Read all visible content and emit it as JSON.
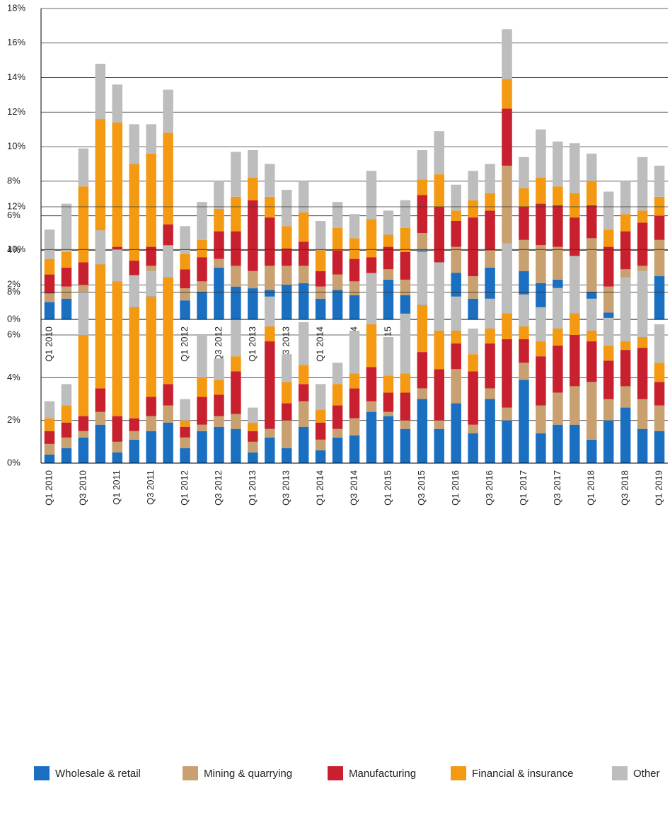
{
  "chart_data": [
    {
      "type": "stacked_bar",
      "categories": [
        "Q1 2010",
        null,
        "Q3 2010",
        null,
        "Q1 2011",
        null,
        "Q3 2011",
        null,
        "Q1 2012",
        null,
        "Q3 2012",
        null,
        "Q1 2013",
        null,
        "Q3 2013",
        null,
        "Q1 2014",
        null,
        "Q3 2014",
        null,
        "Q1 2015",
        null,
        "Q3 2015",
        null,
        "Q1 2016",
        null,
        "Q3 2016",
        null,
        "Q1 2017",
        null,
        "Q3 2017",
        null,
        "Q1 2018",
        null,
        "Q3 2018",
        null,
        "Q1 2019"
      ],
      "ylim": [
        0,
        18
      ],
      "yticks": [
        {
          "value": 0,
          "label": "0%"
        },
        {
          "value": 2,
          "label": "2%"
        },
        {
          "value": 4,
          "label": "4%"
        },
        {
          "value": 6,
          "label": "6%"
        },
        {
          "value": 8,
          "label": "8%"
        },
        {
          "value": 10,
          "label": "10%"
        },
        {
          "value": 12,
          "label": "12%"
        },
        {
          "value": 14,
          "label": "14%"
        },
        {
          "value": 16,
          "label": "16%"
        },
        {
          "value": 18,
          "label": "18%"
        }
      ],
      "grid": true,
      "series": [
        {
          "name": "Wholesale & retail",
          "color": "#1a6fc1",
          "values": [
            1.0,
            1.2,
            1.4,
            1.8,
            2.5,
            1.4,
            2.5,
            2.3,
            1.1,
            1.6,
            3.0,
            1.9,
            1.8,
            1.7,
            2.0,
            2.1,
            1.2,
            1.7,
            1.4,
            1.5,
            2.3,
            1.4,
            4.0,
            1.5,
            2.7,
            1.2,
            3.0,
            2.6,
            2.8,
            2.1,
            2.3,
            1.7,
            1.6,
            0.4,
            1.6,
            1.7,
            2.5
          ]
        },
        {
          "name": "Mining & quarrying",
          "color": "#c9a06f",
          "values": [
            0.5,
            0.7,
            0.6,
            1.0,
            0.5,
            0.7,
            0.6,
            1.6,
            0.7,
            0.6,
            0.5,
            1.2,
            1.0,
            1.4,
            1.1,
            1.0,
            0.7,
            0.9,
            0.8,
            0.6,
            0.6,
            0.9,
            1.0,
            1.8,
            1.5,
            1.3,
            1.0,
            6.3,
            1.8,
            2.2,
            1.9,
            1.9,
            3.1,
            1.5,
            1.3,
            1.4,
            2.1
          ]
        },
        {
          "name": "Manufacturing",
          "color": "#c8202e",
          "values": [
            1.1,
            1.1,
            1.3,
            2.0,
            1.2,
            1.3,
            1.1,
            1.6,
            1.1,
            1.4,
            1.6,
            2.0,
            4.1,
            2.8,
            1.0,
            1.4,
            0.9,
            1.4,
            1.3,
            1.5,
            1.3,
            1.6,
            2.2,
            3.2,
            1.5,
            3.4,
            2.3,
            3.3,
            1.9,
            2.4,
            2.4,
            2.3,
            1.9,
            2.3,
            2.2,
            2.5,
            1.4
          ]
        },
        {
          "name": "Financial & insurance",
          "color": "#f39a12",
          "values": [
            0.9,
            0.9,
            4.4,
            6.8,
            7.2,
            5.6,
            5.4,
            5.3,
            0.9,
            1.0,
            1.3,
            2.0,
            1.3,
            1.2,
            1.3,
            1.7,
            1.2,
            1.3,
            1.2,
            2.2,
            0.7,
            1.4,
            0.9,
            1.9,
            0.6,
            1.0,
            1.0,
            1.7,
            1.1,
            1.5,
            1.1,
            1.4,
            1.4,
            1.0,
            1.0,
            0.7,
            1.1
          ]
        },
        {
          "name": "Other",
          "color": "#bdbdbd",
          "values": [
            1.7,
            2.8,
            2.2,
            3.2,
            2.2,
            2.3,
            1.7,
            2.5,
            1.6,
            2.2,
            1.6,
            2.6,
            1.6,
            1.9,
            2.1,
            1.8,
            1.7,
            1.5,
            1.4,
            2.8,
            1.4,
            1.6,
            1.7,
            2.5,
            1.5,
            1.7,
            1.7,
            2.9,
            1.8,
            2.8,
            2.6,
            2.9,
            1.6,
            2.2,
            1.9,
            3.1,
            1.8
          ]
        }
      ]
    },
    {
      "type": "stacked_bar",
      "categories": [
        "Q1 2010",
        null,
        "Q3 2010",
        null,
        "Q1 2011",
        null,
        "Q3 2011",
        null,
        "Q1 2012",
        null,
        "Q3 2012",
        null,
        "Q1 2013",
        null,
        "Q3 2013",
        null,
        "Q1 2014",
        null,
        "Q3 2014",
        null,
        "Q1 2015",
        null,
        "Q3 2015",
        null,
        "Q1 2016",
        null,
        "Q3 2016",
        null,
        "Q1 2017",
        null,
        "Q3 2017",
        null,
        "Q1 2018",
        null,
        "Q3 2018",
        null,
        "Q1 2019"
      ],
      "ylim": [
        0,
        12
      ],
      "yticks": [
        {
          "value": 0,
          "label": "0%"
        },
        {
          "value": 2,
          "label": "2%"
        },
        {
          "value": 4,
          "label": "4%"
        },
        {
          "value": 6,
          "label": "6%"
        },
        {
          "value": 8,
          "label": "8%"
        },
        {
          "value": 10,
          "label": "10%"
        },
        {
          "value": 12,
          "label": "12%"
        }
      ],
      "grid": true,
      "series": [
        {
          "color": "#1a6fc1",
          "values": [
            0.4,
            0.7,
            1.2,
            1.8,
            0.5,
            1.1,
            1.5,
            1.9,
            0.7,
            1.5,
            1.7,
            1.6,
            0.5,
            1.2,
            0.7,
            1.7,
            0.6,
            1.2,
            1.3,
            2.4,
            2.2,
            1.6,
            3.0,
            1.6,
            2.8,
            1.4,
            3.0,
            2.0,
            3.9,
            1.4,
            1.8,
            1.8,
            1.1,
            2.0,
            2.6,
            1.6,
            1.5
          ]
        },
        {
          "color": "#c9a06f",
          "values": [
            0.5,
            0.5,
            0.3,
            0.6,
            0.5,
            0.4,
            0.7,
            0.8,
            0.5,
            0.3,
            0.5,
            0.7,
            0.5,
            0.4,
            1.3,
            1.2,
            0.5,
            0.4,
            0.8,
            0.5,
            0.2,
            0.4,
            0.5,
            0.4,
            1.6,
            0.4,
            0.5,
            0.6,
            0.8,
            1.3,
            1.5,
            1.8,
            2.7,
            1.0,
            1.0,
            1.4,
            1.2
          ]
        },
        {
          "color": "#c8202e",
          "values": [
            0.6,
            0.7,
            0.7,
            1.1,
            1.2,
            0.6,
            0.9,
            1.0,
            0.5,
            1.3,
            1.0,
            2.0,
            0.5,
            4.1,
            0.8,
            0.8,
            0.8,
            1.1,
            1.4,
            1.6,
            0.9,
            1.3,
            1.7,
            2.4,
            1.2,
            2.5,
            2.1,
            3.2,
            1.1,
            2.3,
            2.2,
            2.4,
            1.9,
            1.8,
            1.7,
            2.4,
            1.1
          ]
        },
        {
          "color": "#f39a12",
          "values": [
            0.6,
            0.8,
            3.8,
            5.8,
            6.3,
            5.2,
            4.7,
            5.0,
            0.3,
            0.9,
            0.7,
            0.7,
            0.4,
            0.7,
            1.0,
            0.9,
            0.6,
            1.0,
            0.7,
            2.0,
            0.8,
            0.9,
            2.2,
            1.8,
            0.6,
            0.8,
            0.7,
            1.2,
            0.6,
            0.7,
            0.8,
            1.0,
            0.5,
            0.7,
            0.4,
            0.5,
            0.9
          ]
        },
        {
          "color": "#bdbdbd",
          "values": [
            0.8,
            1.0,
            2.0,
            1.6,
            1.5,
            1.5,
            1.2,
            1.5,
            1.0,
            2.0,
            1.0,
            1.7,
            0.7,
            1.4,
            1.3,
            2.0,
            1.2,
            1.0,
            2.0,
            2.4,
            1.8,
            2.8,
            2.5,
            3.2,
            1.6,
            1.2,
            1.4,
            3.3,
            1.5,
            1.6,
            1.9,
            2.7,
            1.5,
            1.3,
            3.0,
            3.1,
            1.8
          ]
        }
      ]
    }
  ]
}
